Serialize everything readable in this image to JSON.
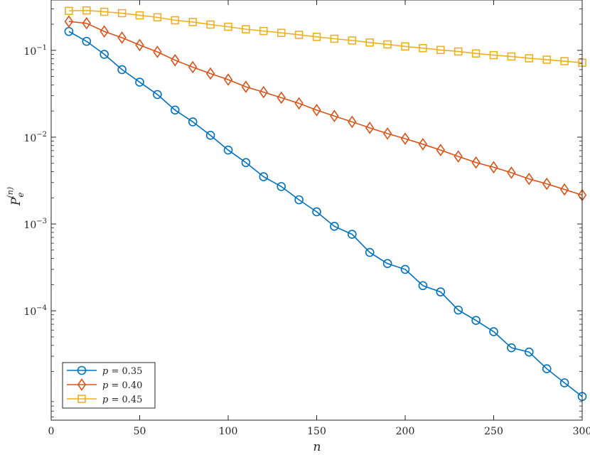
{
  "chart_data": {
    "type": "line",
    "title": "",
    "xlabel": "n",
    "ylabel": {
      "base": "P",
      "sub": "e",
      "sup": "(n)"
    },
    "xlim": [
      0,
      300
    ],
    "ylim": [
      5.5e-06,
      0.38
    ],
    "yscale": "log",
    "xticks": [
      0,
      50,
      100,
      150,
      200,
      250,
      300
    ],
    "yticks": [
      {
        "value": 0.1,
        "base": "10",
        "exp": "−1"
      },
      {
        "value": 0.01,
        "base": "10",
        "exp": "−2"
      },
      {
        "value": 0.001,
        "base": "10",
        "exp": "−3"
      },
      {
        "value": 0.0001,
        "base": "10",
        "exp": "−4"
      }
    ],
    "grid": false,
    "legend_position": "bottom-left",
    "x": [
      10,
      20,
      30,
      40,
      50,
      60,
      70,
      80,
      90,
      100,
      110,
      120,
      130,
      140,
      150,
      160,
      170,
      180,
      190,
      200,
      210,
      220,
      230,
      240,
      250,
      260,
      270,
      280,
      290,
      300
    ],
    "series": [
      {
        "name": "p = 0.35",
        "legend_var": "p",
        "legend_rest": " = 0.35",
        "color": "#0072BD",
        "marker": "circle",
        "values": [
          0.165,
          0.127,
          0.09,
          0.06,
          0.043,
          0.031,
          0.0205,
          0.015,
          0.0105,
          0.0071,
          0.0051,
          0.0035,
          0.0027,
          0.0019,
          0.00138,
          0.00094,
          0.00076,
          0.00047,
          0.00035,
          0.0003,
          0.000195,
          0.000165,
          0.000102,
          7.75e-05,
          5.75e-05,
          3.75e-05,
          3.35e-05,
          2.15e-05,
          1.48e-05,
          1.03e-05
        ]
      },
      {
        "name": "p = 0.40",
        "legend_var": "p",
        "legend_rest": " = 0.40",
        "color": "#D95319",
        "marker": "diamond",
        "values": [
          0.215,
          0.205,
          0.165,
          0.14,
          0.115,
          0.096,
          0.077,
          0.064,
          0.054,
          0.046,
          0.038,
          0.033,
          0.0285,
          0.0245,
          0.0205,
          0.0175,
          0.015,
          0.0128,
          0.011,
          0.0096,
          0.0083,
          0.0071,
          0.006,
          0.0051,
          0.0045,
          0.0039,
          0.0033,
          0.0029,
          0.0025,
          0.00215
        ]
      },
      {
        "name": "p = 0.45",
        "legend_var": "p",
        "legend_rest": " = 0.45",
        "color": "#EDB120",
        "marker": "square",
        "values": [
          0.285,
          0.288,
          0.278,
          0.268,
          0.253,
          0.24,
          0.222,
          0.212,
          0.198,
          0.187,
          0.175,
          0.167,
          0.159,
          0.151,
          0.143,
          0.136,
          0.13,
          0.123,
          0.117,
          0.111,
          0.106,
          0.101,
          0.097,
          0.092,
          0.088,
          0.085,
          0.081,
          0.078,
          0.075,
          0.072
        ]
      }
    ]
  }
}
